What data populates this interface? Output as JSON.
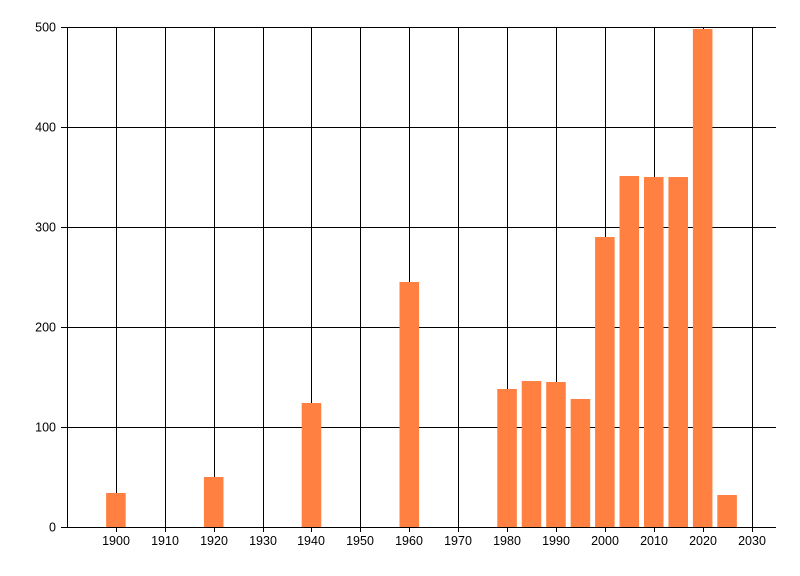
{
  "chart_data": {
    "type": "bar",
    "title": "",
    "xlabel": "",
    "ylabel": "",
    "x": [
      1900,
      1920,
      1940,
      1960,
      1980,
      1985,
      1990,
      1995,
      2000,
      2005,
      2010,
      2015,
      2020,
      2025
    ],
    "values": [
      34,
      50,
      124,
      245,
      138,
      146,
      145,
      128,
      290,
      351,
      350,
      350,
      498,
      32
    ],
    "x_ticks": [
      1900,
      1910,
      1920,
      1930,
      1940,
      1950,
      1960,
      1970,
      1980,
      1990,
      2000,
      2010,
      2020,
      2030
    ],
    "y_ticks": [
      0,
      100,
      200,
      300,
      400,
      500
    ],
    "xlim": [
      1890,
      2035
    ],
    "ylim": [
      0,
      500
    ],
    "bar_width_years": 4,
    "bar_color": "#ff8040",
    "grid": "on",
    "grid_color": "#000000",
    "text_color": "#000000",
    "background_color": "#ffffff",
    "legend": "none"
  }
}
